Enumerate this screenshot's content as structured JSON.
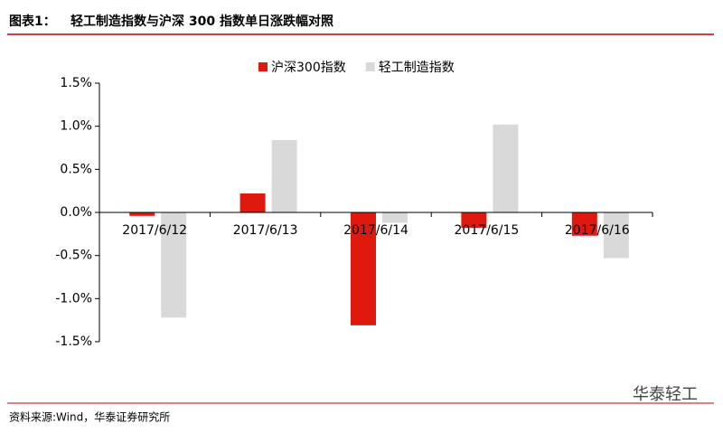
{
  "chart_data": {
    "type": "bar",
    "figure_label": "图表1：",
    "title": "轻工制造指数与沪深 300 指数单日涨跌幅对照",
    "categories": [
      "2017/6/12",
      "2017/6/13",
      "2017/6/14",
      "2017/6/15",
      "2017/6/16"
    ],
    "series": [
      {
        "name": "沪深300指数",
        "color": "#e0190f",
        "values": [
          -0.04,
          0.22,
          -1.31,
          -0.18,
          -0.27
        ]
      },
      {
        "name": "轻工制造指数",
        "color": "#d9d9d9",
        "values": [
          -1.22,
          0.84,
          -0.12,
          1.02,
          -0.53
        ]
      }
    ],
    "ylim": [
      -1.5,
      1.5
    ],
    "yticks": [
      {
        "value": -1.5,
        "label": "-1.5%"
      },
      {
        "value": -1.0,
        "label": "-1.0%"
      },
      {
        "value": -0.5,
        "label": "-0.5%"
      },
      {
        "value": 0,
        "label": "0.0%"
      },
      {
        "value": 0.5,
        "label": "0.5%"
      },
      {
        "value": 1.0,
        "label": "1.0%"
      },
      {
        "value": 1.5,
        "label": "1.5%"
      }
    ],
    "grid": false,
    "legend": "top",
    "source": "资料来源:Wind，华泰证券研究所",
    "watermark": "华泰轻工"
  }
}
